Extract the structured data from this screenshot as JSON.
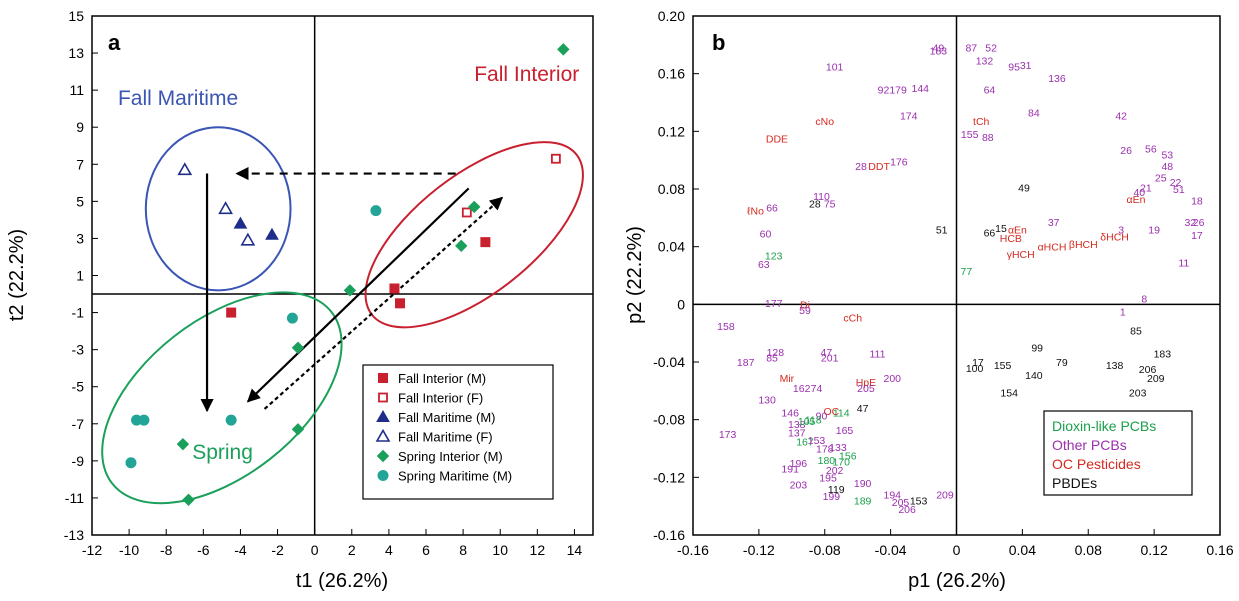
{
  "chart_data": [
    {
      "panel_label": "a",
      "type": "scatter",
      "xlabel": "t1 (26.2%)",
      "ylabel": "t2 (22.2%)",
      "xlim": [
        -12,
        15
      ],
      "ylim": [
        -13,
        15
      ],
      "xticks": [
        "-12",
        "-10",
        "-8",
        "-6",
        "-4",
        "-2",
        "0",
        "2",
        "4",
        "6",
        "8",
        "10",
        "12",
        "14"
      ],
      "yticks": [
        "-13",
        "-11",
        "-9",
        "-7",
        "-5",
        "-3",
        "-1",
        "1",
        "3",
        "5",
        "7",
        "9",
        "11",
        "13",
        "15"
      ],
      "grid": false,
      "legend_position": "bottom-right",
      "series": [
        {
          "name": "Fall Interior (M)",
          "marker": "square-filled",
          "color": "#c8202e",
          "points": [
            [
              4.3,
              0.3
            ],
            [
              4.6,
              -0.5
            ],
            [
              9.2,
              2.8
            ],
            [
              -4.5,
              -1.0
            ]
          ]
        },
        {
          "name": "Fall Interior (F)",
          "marker": "square-open",
          "color": "#c8202e",
          "points": [
            [
              13.0,
              7.3
            ],
            [
              8.2,
              4.4
            ]
          ]
        },
        {
          "name": "Fall Maritime (M)",
          "marker": "triangle-filled",
          "color": "#1f2d8a",
          "points": [
            [
              -4.0,
              3.8
            ],
            [
              -2.3,
              3.2
            ]
          ]
        },
        {
          "name": "Fall Maritime (F)",
          "marker": "triangle-open",
          "color": "#1f2d8a",
          "points": [
            [
              -7.0,
              6.7
            ],
            [
              -4.8,
              4.6
            ],
            [
              -3.6,
              2.9
            ]
          ]
        },
        {
          "name": "Spring Interior (M)",
          "marker": "diamond-filled",
          "color": "#1aa05a",
          "points": [
            [
              13.4,
              13.2
            ],
            [
              8.6,
              4.7
            ],
            [
              7.9,
              2.6
            ],
            [
              1.9,
              0.2
            ],
            [
              -0.9,
              -2.9
            ],
            [
              -0.9,
              -7.3
            ],
            [
              -7.1,
              -8.1
            ],
            [
              -6.8,
              -11.1
            ]
          ]
        },
        {
          "name": "Spring Maritime (M)",
          "marker": "circle-filled",
          "color": "#22a596",
          "points": [
            [
              3.3,
              4.5
            ],
            [
              -1.2,
              -1.3
            ],
            [
              -4.5,
              -6.8
            ],
            [
              -9.6,
              -6.8
            ],
            [
              -9.2,
              -6.8
            ],
            [
              -9.9,
              -9.1
            ]
          ]
        }
      ],
      "groups": [
        {
          "label": "Fall Maritime",
          "color": "#3a55b4"
        },
        {
          "label": "Fall Interior",
          "color": "#c8202e"
        },
        {
          "label": "Spring",
          "color": "#1aa05a"
        }
      ]
    },
    {
      "panel_label": "b",
      "type": "scatter",
      "xlabel": "p1 (26.2%)",
      "ylabel": "p2 (22.2%)",
      "xlim": [
        -0.16,
        0.16
      ],
      "ylim": [
        -0.16,
        0.2
      ],
      "xticks": [
        "-0.16",
        "-0.12",
        "-0.08",
        "-0.04",
        "0",
        "0.04",
        "0.08",
        "0.12",
        "0.16"
      ],
      "yticks": [
        "-0.16",
        "-0.12",
        "-0.08",
        "-0.04",
        "0",
        "0.04",
        "0.08",
        "0.12",
        "0.16",
        "0.20"
      ],
      "grid": false,
      "legend_position": "bottom-right",
      "categories": [
        {
          "name": "Dioxin-like PCBs",
          "color": "#1aa04a"
        },
        {
          "name": "Other PCBs",
          "color": "#9b2fae"
        },
        {
          "name": "OC Pesticides",
          "color": "#d42a1f"
        },
        {
          "name": "PBDEs",
          "color": "#111111"
        }
      ],
      "labels": [
        {
          "t": "49",
          "x": -0.011,
          "y": 0.178,
          "c": 1
        },
        {
          "t": "183",
          "x": -0.011,
          "y": 0.176,
          "c": 1
        },
        {
          "t": "87",
          "x": 0.009,
          "y": 0.178,
          "c": 1
        },
        {
          "t": "52",
          "x": 0.021,
          "y": 0.178,
          "c": 1
        },
        {
          "t": "132",
          "x": 0.017,
          "y": 0.169,
          "c": 1
        },
        {
          "t": "101",
          "x": -0.074,
          "y": 0.165,
          "c": 1
        },
        {
          "t": "95",
          "x": 0.035,
          "y": 0.165,
          "c": 1
        },
        {
          "t": "31",
          "x": 0.042,
          "y": 0.166,
          "c": 1
        },
        {
          "t": "136",
          "x": 0.061,
          "y": 0.157,
          "c": 1
        },
        {
          "t": "92179",
          "x": -0.039,
          "y": 0.149,
          "c": 1
        },
        {
          "t": "144",
          "x": -0.022,
          "y": 0.15,
          "c": 1
        },
        {
          "t": "64",
          "x": 0.02,
          "y": 0.149,
          "c": 1
        },
        {
          "t": "174",
          "x": -0.029,
          "y": 0.131,
          "c": 1
        },
        {
          "t": "84",
          "x": 0.047,
          "y": 0.133,
          "c": 1
        },
        {
          "t": "42",
          "x": 0.1,
          "y": 0.131,
          "c": 1
        },
        {
          "t": "tCh",
          "x": 0.015,
          "y": 0.127,
          "c": 2
        },
        {
          "t": "cNo",
          "x": -0.08,
          "y": 0.127,
          "c": 2
        },
        {
          "t": "155",
          "x": 0.008,
          "y": 0.118,
          "c": 1
        },
        {
          "t": "88",
          "x": 0.019,
          "y": 0.116,
          "c": 1
        },
        {
          "t": "DDE",
          "x": -0.109,
          "y": 0.115,
          "c": 2
        },
        {
          "t": "26",
          "x": 0.103,
          "y": 0.107,
          "c": 1
        },
        {
          "t": "56",
          "x": 0.118,
          "y": 0.108,
          "c": 1
        },
        {
          "t": "53",
          "x": 0.128,
          "y": 0.104,
          "c": 1
        },
        {
          "t": "176",
          "x": -0.035,
          "y": 0.099,
          "c": 1
        },
        {
          "t": "28",
          "x": -0.058,
          "y": 0.096,
          "c": 1
        },
        {
          "t": "DDT",
          "x": -0.047,
          "y": 0.096,
          "c": 2
        },
        {
          "t": "48",
          "x": 0.128,
          "y": 0.096,
          "c": 1
        },
        {
          "t": "25",
          "x": 0.124,
          "y": 0.088,
          "c": 1
        },
        {
          "t": "22",
          "x": 0.133,
          "y": 0.085,
          "c": 1
        },
        {
          "t": "21",
          "x": 0.115,
          "y": 0.081,
          "c": 1
        },
        {
          "t": "51",
          "x": 0.135,
          "y": 0.08,
          "c": 1
        },
        {
          "t": "49",
          "x": 0.041,
          "y": 0.081,
          "c": 3
        },
        {
          "t": "40",
          "x": 0.111,
          "y": 0.078,
          "c": 1
        },
        {
          "t": "αEn",
          "x": 0.109,
          "y": 0.073,
          "c": 2
        },
        {
          "t": "18",
          "x": 0.146,
          "y": 0.072,
          "c": 1
        },
        {
          "t": "110",
          "x": -0.082,
          "y": 0.075,
          "c": 1
        },
        {
          "t": "28",
          "x": -0.086,
          "y": 0.07,
          "c": 3
        },
        {
          "t": "75",
          "x": -0.077,
          "y": 0.07,
          "c": 1
        },
        {
          "t": "ℓNo",
          "x": -0.122,
          "y": 0.065,
          "c": 2
        },
        {
          "t": "66",
          "x": -0.112,
          "y": 0.067,
          "c": 1
        },
        {
          "t": "37",
          "x": 0.059,
          "y": 0.057,
          "c": 1
        },
        {
          "t": "32",
          "x": 0.142,
          "y": 0.057,
          "c": 1
        },
        {
          "t": "26",
          "x": 0.147,
          "y": 0.057,
          "c": 1
        },
        {
          "t": "51",
          "x": -0.009,
          "y": 0.052,
          "c": 3
        },
        {
          "t": "15",
          "x": 0.027,
          "y": 0.053,
          "c": 3
        },
        {
          "t": "αEn",
          "x": 0.037,
          "y": 0.052,
          "c": 2
        },
        {
          "t": "66",
          "x": 0.02,
          "y": 0.05,
          "c": 3
        },
        {
          "t": "HCB",
          "x": 0.033,
          "y": 0.046,
          "c": 2
        },
        {
          "t": "3",
          "x": 0.1,
          "y": 0.052,
          "c": 1
        },
        {
          "t": "19",
          "x": 0.12,
          "y": 0.052,
          "c": 1
        },
        {
          "t": "60",
          "x": -0.116,
          "y": 0.049,
          "c": 1
        },
        {
          "t": "17",
          "x": 0.146,
          "y": 0.048,
          "c": 1
        },
        {
          "t": "αHCH",
          "x": 0.058,
          "y": 0.04,
          "c": 2
        },
        {
          "t": "βHCH",
          "x": 0.077,
          "y": 0.042,
          "c": 2
        },
        {
          "t": "δHCH",
          "x": 0.096,
          "y": 0.047,
          "c": 2
        },
        {
          "t": "γHCH",
          "x": 0.039,
          "y": 0.035,
          "c": 2
        },
        {
          "t": "123",
          "x": -0.111,
          "y": 0.034,
          "c": 0
        },
        {
          "t": "77",
          "x": 0.006,
          "y": 0.023,
          "c": 0
        },
        {
          "t": "11",
          "x": 0.138,
          "y": 0.029,
          "c": 1
        },
        {
          "t": "63",
          "x": -0.117,
          "y": 0.028,
          "c": 1
        },
        {
          "t": "8",
          "x": 0.114,
          "y": 0.004,
          "c": 1
        },
        {
          "t": "177",
          "x": -0.111,
          "y": 0.001,
          "c": 1
        },
        {
          "t": "Di",
          "x": -0.092,
          "y": 0.0,
          "c": 2
        },
        {
          "t": "59",
          "x": -0.092,
          "y": -0.004,
          "c": 1
        },
        {
          "t": "1",
          "x": 0.101,
          "y": -0.005,
          "c": 1
        },
        {
          "t": "cCh",
          "x": -0.063,
          "y": -0.009,
          "c": 2
        },
        {
          "t": "85",
          "x": 0.109,
          "y": -0.018,
          "c": 3
        },
        {
          "t": "158",
          "x": -0.14,
          "y": -0.015,
          "c": 1
        },
        {
          "t": "99",
          "x": 0.049,
          "y": -0.03,
          "c": 3
        },
        {
          "t": "183",
          "x": 0.125,
          "y": -0.034,
          "c": 3
        },
        {
          "t": "128",
          "x": -0.11,
          "y": -0.033,
          "c": 1
        },
        {
          "t": "85",
          "x": -0.112,
          "y": -0.037,
          "c": 1
        },
        {
          "t": "47",
          "x": -0.079,
          "y": -0.033,
          "c": 1
        },
        {
          "t": "111",
          "x": -0.048,
          "y": -0.034,
          "c": 1
        },
        {
          "t": "201",
          "x": -0.077,
          "y": -0.037,
          "c": 1
        },
        {
          "t": "187",
          "x": -0.128,
          "y": -0.04,
          "c": 1
        },
        {
          "t": "17",
          "x": 0.013,
          "y": -0.04,
          "c": 3
        },
        {
          "t": "155",
          "x": 0.028,
          "y": -0.042,
          "c": 3
        },
        {
          "t": "79",
          "x": 0.064,
          "y": -0.04,
          "c": 3
        },
        {
          "t": "138",
          "x": 0.096,
          "y": -0.042,
          "c": 3
        },
        {
          "t": "206",
          "x": 0.116,
          "y": -0.045,
          "c": 3
        },
        {
          "t": "100",
          "x": 0.011,
          "y": -0.044,
          "c": 3
        },
        {
          "t": "140",
          "x": 0.047,
          "y": -0.049,
          "c": 3
        },
        {
          "t": "209",
          "x": 0.121,
          "y": -0.051,
          "c": 3
        },
        {
          "t": "Mir",
          "x": -0.103,
          "y": -0.051,
          "c": 2
        },
        {
          "t": "200",
          "x": -0.039,
          "y": -0.051,
          "c": 1
        },
        {
          "t": "HpE",
          "x": -0.055,
          "y": -0.054,
          "c": 2
        },
        {
          "t": "162",
          "x": -0.094,
          "y": -0.058,
          "c": 1
        },
        {
          "t": "74",
          "x": -0.085,
          "y": -0.058,
          "c": 1
        },
        {
          "t": "205",
          "x": -0.055,
          "y": -0.058,
          "c": 1
        },
        {
          "t": "154",
          "x": 0.032,
          "y": -0.061,
          "c": 3
        },
        {
          "t": "203",
          "x": 0.11,
          "y": -0.061,
          "c": 3
        },
        {
          "t": "130",
          "x": -0.115,
          "y": -0.066,
          "c": 1
        },
        {
          "t": "OC",
          "x": -0.076,
          "y": -0.074,
          "c": 2
        },
        {
          "t": "47",
          "x": -0.057,
          "y": -0.072,
          "c": 3
        },
        {
          "t": "146",
          "x": -0.101,
          "y": -0.075,
          "c": 1
        },
        {
          "t": "90",
          "x": -0.082,
          "y": -0.077,
          "c": 1
        },
        {
          "t": "114",
          "x": -0.07,
          "y": -0.075,
          "c": 0
        },
        {
          "t": "138",
          "x": -0.097,
          "y": -0.083,
          "c": 1
        },
        {
          "t": "105",
          "x": -0.091,
          "y": -0.081,
          "c": 0
        },
        {
          "t": "118",
          "x": -0.087,
          "y": -0.08,
          "c": 0
        },
        {
          "t": "165",
          "x": -0.068,
          "y": -0.087,
          "c": 1
        },
        {
          "t": "173",
          "x": -0.139,
          "y": -0.09,
          "c": 1
        },
        {
          "t": "137",
          "x": -0.097,
          "y": -0.089,
          "c": 1
        },
        {
          "t": "167",
          "x": -0.092,
          "y": -0.095,
          "c": 0
        },
        {
          "t": "153",
          "x": -0.085,
          "y": -0.094,
          "c": 1
        },
        {
          "t": "178",
          "x": -0.08,
          "y": -0.1,
          "c": 1
        },
        {
          "t": "133",
          "x": -0.072,
          "y": -0.099,
          "c": 1
        },
        {
          "t": "156",
          "x": -0.066,
          "y": -0.105,
          "c": 0
        },
        {
          "t": "180",
          "x": -0.079,
          "y": -0.108,
          "c": 0
        },
        {
          "t": "170",
          "x": -0.07,
          "y": -0.109,
          "c": 0
        },
        {
          "t": "196",
          "x": -0.096,
          "y": -0.11,
          "c": 1
        },
        {
          "t": "191",
          "x": -0.101,
          "y": -0.114,
          "c": 1
        },
        {
          "t": "202",
          "x": -0.074,
          "y": -0.115,
          "c": 1
        },
        {
          "t": "195",
          "x": -0.078,
          "y": -0.12,
          "c": 1
        },
        {
          "t": "203",
          "x": -0.096,
          "y": -0.125,
          "c": 1
        },
        {
          "t": "190",
          "x": -0.057,
          "y": -0.124,
          "c": 1
        },
        {
          "t": "119",
          "x": -0.073,
          "y": -0.128,
          "c": 3
        },
        {
          "t": "199",
          "x": -0.076,
          "y": -0.133,
          "c": 1
        },
        {
          "t": "194",
          "x": -0.039,
          "y": -0.132,
          "c": 1
        },
        {
          "t": "209",
          "x": -0.007,
          "y": -0.132,
          "c": 1
        },
        {
          "t": "189",
          "x": -0.057,
          "y": -0.136,
          "c": 0
        },
        {
          "t": "205",
          "x": -0.034,
          "y": -0.137,
          "c": 1
        },
        {
          "t": "153",
          "x": -0.023,
          "y": -0.136,
          "c": 3
        },
        {
          "t": "206",
          "x": -0.03,
          "y": -0.142,
          "c": 1
        }
      ]
    }
  ],
  "panel_a": {
    "letter": "a",
    "group_labels": [
      "Fall Maritime",
      "Fall Interior",
      "Spring"
    ]
  },
  "panel_b": {
    "letter": "b"
  }
}
